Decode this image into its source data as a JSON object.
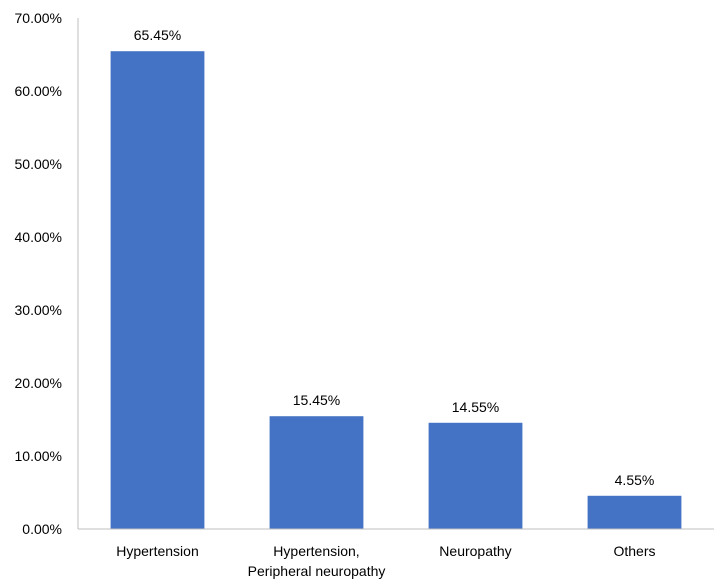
{
  "chart_data": {
    "type": "bar",
    "title": "",
    "xlabel": "",
    "ylabel": "",
    "categories": [
      [
        "Hypertension"
      ],
      [
        "Hypertension,",
        "Peripheral neuropathy"
      ],
      [
        "Neuropathy"
      ],
      [
        "Others"
      ]
    ],
    "values": [
      65.45,
      15.45,
      14.55,
      4.55
    ],
    "value_labels": [
      "65.45%",
      "15.45%",
      "14.55%",
      "4.55%"
    ],
    "ylim": [
      0,
      70
    ],
    "y_ticks": [
      0,
      10,
      20,
      30,
      40,
      50,
      60,
      70
    ],
    "y_tick_labels": [
      "0.00%",
      "10.00%",
      "20.00%",
      "30.00%",
      "40.00%",
      "50.00%",
      "60.00%",
      "70.00%"
    ],
    "grid": false,
    "legend": "none",
    "bar_color": "#4472C4",
    "axis_color": "#BFBFBF"
  }
}
